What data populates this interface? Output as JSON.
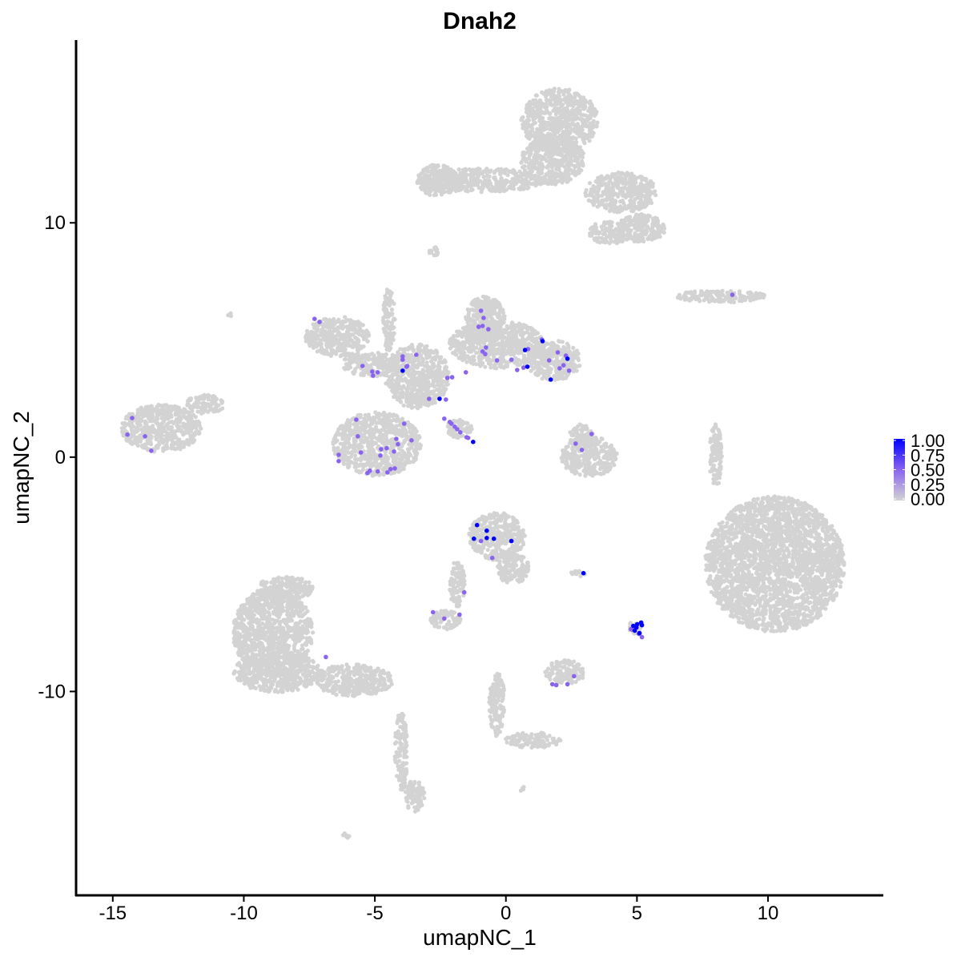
{
  "chart_data": {
    "type": "scatter",
    "title": "Dnah2",
    "xlabel": "umapNC_1",
    "ylabel": "umapNC_2",
    "xlim": [
      -16.4,
      14.4
    ],
    "ylim": [
      -18.7,
      17.8
    ],
    "xticks": [
      -15,
      -10,
      -5,
      0,
      5,
      10
    ],
    "yticks": [
      -10,
      0,
      10
    ],
    "grid": false,
    "legend": {
      "placement": "right",
      "type": "colorbar",
      "labels": [
        "1.00",
        "0.75",
        "0.50",
        "0.25",
        "0.00"
      ],
      "range": [
        0,
        1
      ]
    },
    "colors": {
      "low": "#D3D3D3",
      "mid": "#8A64EF",
      "high": "#0000FF"
    },
    "background_clusters": [
      [
        2.05,
        14.37,
        1.47,
        1.37
      ],
      [
        1.8,
        12.66,
        1.22,
        1.02
      ],
      [
        -0.95,
        11.81,
        2.44,
        0.51
      ],
      [
        -2.63,
        11.81,
        0.76,
        0.68
      ],
      [
        4.4,
        11.3,
        1.37,
        0.85
      ],
      [
        5.16,
        9.76,
        0.92,
        0.61
      ],
      [
        3.94,
        9.59,
        0.76,
        0.51
      ],
      [
        8.21,
        6.86,
        1.68,
        0.27
      ],
      [
        10.26,
        -4.57,
        2.66,
        2.9
      ],
      [
        -13.16,
        1.23,
        1.53,
        1.02
      ],
      [
        -11.48,
        2.25,
        0.76,
        0.41
      ],
      [
        -6.44,
        5.15,
        1.22,
        0.85
      ],
      [
        -5.07,
        3.96,
        1.22,
        0.51
      ],
      [
        -3.39,
        3.45,
        1.22,
        1.37
      ],
      [
        -4.92,
        0.55,
        1.68,
        1.37
      ],
      [
        -0.34,
        4.81,
        1.83,
        1.02
      ],
      [
        -0.79,
        5.84,
        0.76,
        1.02
      ],
      [
        1.8,
        4.13,
        1.07,
        0.85
      ],
      [
        -4.46,
        5.84,
        0.24,
        1.37
      ],
      [
        -1.8,
        1.2,
        0.5,
        0.4
      ],
      [
        3.18,
        0.03,
        1.07,
        0.85
      ],
      [
        2.87,
        0.89,
        0.46,
        0.51
      ],
      [
        8.0,
        0.03,
        0.24,
        1.37
      ],
      [
        -0.34,
        -3.38,
        1.07,
        1.02
      ],
      [
        0.27,
        -4.74,
        0.61,
        0.68
      ],
      [
        -1.86,
        -5.43,
        0.3,
        1.02
      ],
      [
        -2.32,
        -6.96,
        0.61,
        0.41
      ],
      [
        -8.89,
        -7.47,
        1.53,
        1.88
      ],
      [
        -8.73,
        -9.18,
        1.68,
        0.85
      ],
      [
        -5.83,
        -9.52,
        1.53,
        0.68
      ],
      [
        -8.43,
        -5.6,
        1.07,
        0.51
      ],
      [
        -4.0,
        -12.59,
        0.24,
        1.71
      ],
      [
        -3.48,
        -14.47,
        0.37,
        0.68
      ],
      [
        -0.34,
        -10.55,
        0.3,
        1.37
      ],
      [
        1.04,
        -12.08,
        1.07,
        0.34
      ],
      [
        2.26,
        -9.18,
        0.76,
        0.51
      ],
      [
        4.92,
        -7.3,
        0.24,
        0.34
      ],
      [
        2.72,
        -4.98,
        0.3,
        0.14
      ],
      [
        -2.78,
        8.74,
        0.18,
        0.27
      ],
      [
        -6.05,
        -16.11,
        0.18,
        0.14
      ],
      [
        -10.56,
        6.08,
        0.1,
        0.1
      ],
      [
        0.58,
        -14.13,
        0.12,
        0.12
      ]
    ],
    "expressing_points": [
      [
        -14.26,
        1.67,
        0.5
      ],
      [
        -14.44,
        0.96,
        0.5
      ],
      [
        -13.77,
        0.89,
        0.5
      ],
      [
        -13.53,
        0.27,
        0.5
      ],
      [
        -7.3,
        5.9,
        0.5
      ],
      [
        -7.11,
        5.77,
        0.5
      ],
      [
        -6.87,
        -8.53,
        0.5
      ],
      [
        -0.95,
        6.25,
        0.5
      ],
      [
        -0.85,
        5.94,
        0.5
      ],
      [
        -0.89,
        5.6,
        0.5
      ],
      [
        -1.04,
        5.56,
        0.5
      ],
      [
        -0.67,
        5.46,
        0.5
      ],
      [
        -0.76,
        4.68,
        0.5
      ],
      [
        -0.89,
        4.51,
        0.5
      ],
      [
        -0.79,
        4.4,
        0.5
      ],
      [
        -0.34,
        4.13,
        0.5
      ],
      [
        0.21,
        4.16,
        0.5
      ],
      [
        0.73,
        4.57,
        1
      ],
      [
        0.85,
        4.61,
        0.5
      ],
      [
        1.37,
        5.02,
        0.5
      ],
      [
        1.4,
        4.95,
        1
      ],
      [
        1.98,
        4.47,
        0.5
      ],
      [
        2.29,
        4.33,
        0.5
      ],
      [
        2.35,
        4.2,
        1
      ],
      [
        1.65,
        4.13,
        0.5
      ],
      [
        2.2,
        3.92,
        0.5
      ],
      [
        2.05,
        3.79,
        0.5
      ],
      [
        2.41,
        3.69,
        0.5
      ],
      [
        0.82,
        3.86,
        1
      ],
      [
        0.67,
        3.82,
        0.5
      ],
      [
        0.43,
        3.72,
        0.5
      ],
      [
        1.71,
        3.31,
        1
      ],
      [
        -1.53,
        3.62,
        0.5
      ],
      [
        -2.05,
        3.41,
        0.5
      ],
      [
        -2.23,
        3.38,
        0.5
      ],
      [
        -3.42,
        4.37,
        0.5
      ],
      [
        -3.94,
        4.3,
        0.5
      ],
      [
        -3.94,
        4.16,
        0.5
      ],
      [
        -3.76,
        3.89,
        0.5
      ],
      [
        -3.79,
        3.86,
        0.5
      ],
      [
        -3.94,
        3.69,
        1
      ],
      [
        -5.47,
        3.89,
        0.5
      ],
      [
        -5.1,
        3.65,
        0.5
      ],
      [
        -4.89,
        3.62,
        0.5
      ],
      [
        -5.07,
        3.48,
        0.5
      ],
      [
        -2.93,
        2.49,
        0.5
      ],
      [
        -2.53,
        2.49,
        1
      ],
      [
        -2.29,
        2.46,
        0.5
      ],
      [
        -2.35,
        1.64,
        0.5
      ],
      [
        -2.14,
        1.5,
        0.5
      ],
      [
        -2.08,
        1.43,
        0.5
      ],
      [
        -1.95,
        1.3,
        0.5
      ],
      [
        -1.86,
        1.19,
        0.5
      ],
      [
        -1.74,
        1.06,
        0.5
      ],
      [
        -1.5,
        0.85,
        0.5
      ],
      [
        -1.44,
        0.82,
        0.5
      ],
      [
        -1.25,
        0.65,
        1
      ],
      [
        -5.71,
        1.6,
        0.5
      ],
      [
        -3.88,
        1.43,
        0.5
      ],
      [
        -5.65,
        0.89,
        0.5
      ],
      [
        -4.18,
        0.78,
        0.5
      ],
      [
        -4.12,
        0.55,
        0.5
      ],
      [
        -3.6,
        0.72,
        0.5
      ],
      [
        -6.38,
        0.1,
        0.5
      ],
      [
        -6.38,
        -0.17,
        0.5
      ],
      [
        -5.53,
        0.2,
        0.5
      ],
      [
        -4.76,
        0.34,
        0.5
      ],
      [
        -4.55,
        0.38,
        0.5
      ],
      [
        -4.27,
        0.24,
        0.5
      ],
      [
        -4.79,
        0.07,
        0.5
      ],
      [
        -5.19,
        -0.58,
        0.5
      ],
      [
        -5.28,
        -0.68,
        0.5
      ],
      [
        -4.89,
        -0.61,
        0.5
      ],
      [
        -4.52,
        -0.65,
        0.5
      ],
      [
        -4.4,
        -0.51,
        0.5
      ],
      [
        -4.24,
        -0.48,
        0.5
      ],
      [
        2.66,
        0.58,
        0.5
      ],
      [
        2.9,
        0.31,
        0.5
      ],
      [
        3.27,
        0.99,
        0.5
      ],
      [
        -1.1,
        -2.9,
        1
      ],
      [
        -0.73,
        -3.14,
        1
      ],
      [
        -1.22,
        -3.48,
        1
      ],
      [
        -0.73,
        -3.45,
        1
      ],
      [
        -0.46,
        -3.48,
        1
      ],
      [
        -0.95,
        -3.58,
        0.5
      ],
      [
        0.21,
        -3.58,
        1
      ],
      [
        -0.52,
        -4.3,
        0.5
      ],
      [
        2.96,
        -4.95,
        1
      ],
      [
        -1.59,
        -5.77,
        0.5
      ],
      [
        -2.78,
        -6.62,
        0.5
      ],
      [
        -2.35,
        -6.89,
        0.5
      ],
      [
        -1.77,
        -6.72,
        0.5
      ],
      [
        2.6,
        -9.35,
        0.5
      ],
      [
        1.77,
        -9.69,
        0.5
      ],
      [
        1.92,
        -9.73,
        0.5
      ],
      [
        2.35,
        -9.69,
        0.5
      ],
      [
        8.64,
        6.93,
        0.5
      ],
      [
        4.77,
        -7.34,
        0.5
      ],
      [
        4.83,
        -7.37,
        0.5
      ],
      [
        5.07,
        -7.54,
        0.5
      ],
      [
        5.19,
        -7.68,
        0.5
      ],
      [
        4.86,
        -7.2,
        1
      ],
      [
        5.01,
        -7.13,
        1
      ],
      [
        5.16,
        -7.06,
        1
      ],
      [
        5.19,
        -7.17,
        1
      ],
      [
        4.92,
        -7.4,
        1
      ],
      [
        5.1,
        -7.51,
        1
      ],
      [
        4.98,
        -7.27,
        1
      ]
    ]
  }
}
